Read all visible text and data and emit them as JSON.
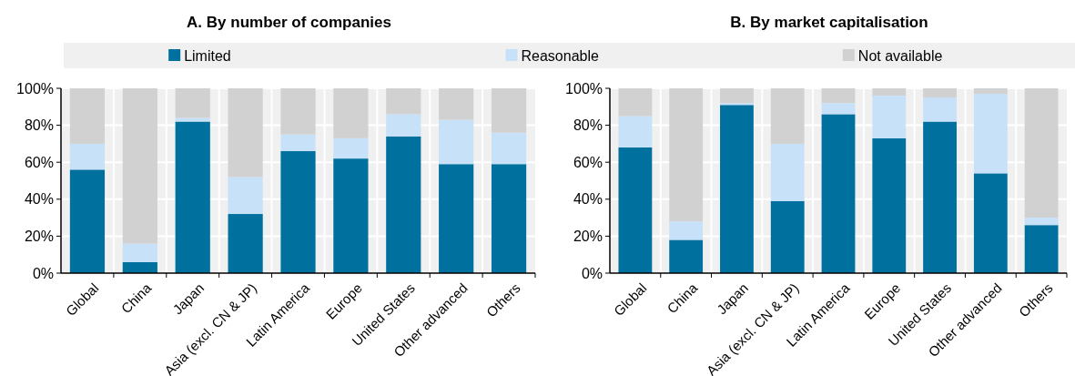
{
  "chart_data": [
    {
      "type": "bar",
      "title": "A. By number of companies",
      "stacked": true,
      "legend": "top",
      "grid": "y",
      "categories": [
        "Global",
        "China",
        "Japan",
        "Asia (excl. CN & JP)",
        "Latin America",
        "Europe",
        "United States",
        "Other advanced",
        "Others"
      ],
      "series": [
        {
          "name": "Limited",
          "color": "#00719f",
          "values": [
            56,
            6,
            82,
            32,
            66,
            62,
            74,
            59,
            59
          ]
        },
        {
          "name": "Reasonable",
          "color": "#c7e1f8",
          "values": [
            14,
            10,
            2,
            20,
            9,
            11,
            12,
            24,
            17
          ]
        },
        {
          "name": "Not available",
          "color": "#d1d1d1",
          "values": [
            30,
            84,
            16,
            48,
            25,
            27,
            14,
            17,
            24
          ]
        }
      ],
      "ylim": [
        0,
        100
      ],
      "yticks": [
        {
          "value": 0,
          "label": "0%"
        },
        {
          "value": 20,
          "label": "20%"
        },
        {
          "value": 40,
          "label": "40%"
        },
        {
          "value": 60,
          "label": "60%"
        },
        {
          "value": 80,
          "label": "80%"
        },
        {
          "value": 100,
          "label": "100%"
        }
      ]
    },
    {
      "type": "bar",
      "title": "B. By market capitalisation",
      "stacked": true,
      "grid": "y",
      "categories": [
        "Global",
        "China",
        "Japan",
        "Asia (excl. CN & JP)",
        "Latin America",
        "Europe",
        "United States",
        "Other advanced",
        "Others"
      ],
      "series": [
        {
          "color": "#00719f",
          "values": [
            68,
            18,
            91,
            39,
            86,
            73,
            82,
            54,
            26
          ]
        },
        {
          "color": "#c7e1f8",
          "values": [
            17,
            10,
            1,
            31,
            6,
            23,
            13,
            43,
            4
          ]
        },
        {
          "color": "#d1d1d1",
          "values": [
            15,
            72,
            8,
            30,
            8,
            4,
            5,
            3,
            70
          ]
        }
      ],
      "ylim": [
        0,
        100
      ],
      "yticks": [
        {
          "value": 0,
          "label": "0%"
        },
        {
          "value": 20,
          "label": "20%"
        },
        {
          "value": 40,
          "label": "40%"
        },
        {
          "value": 60,
          "label": "60%"
        },
        {
          "value": 80,
          "label": "80%"
        },
        {
          "value": 100,
          "label": "100%"
        }
      ]
    }
  ]
}
